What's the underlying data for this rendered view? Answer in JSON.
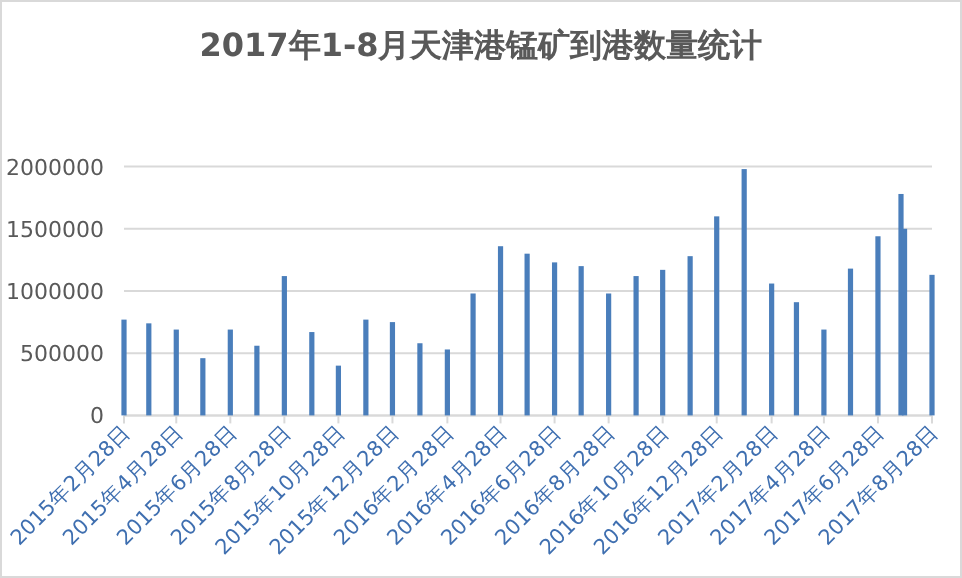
{
  "chart_data": {
    "type": "bar",
    "title": "2017年1-8月天津港锰矿到港数量统计",
    "x": [
      "2015-02-28",
      "2015-03-28",
      "2015-04-28",
      "2015-05-28",
      "2015-06-28",
      "2015-07-28",
      "2015-08-28",
      "2015-09-28",
      "2015-10-28",
      "2015-11-28",
      "2015-12-28",
      "2016-01-28",
      "2016-02-28",
      "2016-03-28",
      "2016-04-28",
      "2016-05-28",
      "2016-06-28",
      "2016-07-28",
      "2016-08-28",
      "2016-09-28",
      "2016-10-28",
      "2016-11-28",
      "2016-12-28",
      "2017-01-28",
      "2017-02-28",
      "2017-03-28",
      "2017-04-28",
      "2017-05-28",
      "2017-06-28",
      "2017-07-24",
      "2017-07-28",
      "2017-08-28"
    ],
    "values": [
      770000,
      740000,
      690000,
      460000,
      690000,
      560000,
      1120000,
      670000,
      400000,
      770000,
      750000,
      580000,
      530000,
      980000,
      1360000,
      1300000,
      1230000,
      1200000,
      980000,
      1120000,
      1170000,
      1280000,
      1600000,
      1980000,
      1060000,
      910000,
      690000,
      1180000,
      1440000,
      1780000,
      1500000,
      1130000
    ],
    "color": "#4a7ebb",
    "xlim": [
      "2015-02-28",
      "2017-08-28"
    ],
    "xticks": [
      {
        "value": "2015-02-28",
        "label": "2015年2月28日"
      },
      {
        "value": "2015-04-28",
        "label": "2015年4月28日"
      },
      {
        "value": "2015-06-28",
        "label": "2015年6月28日"
      },
      {
        "value": "2015-08-28",
        "label": "2015年8月28日"
      },
      {
        "value": "2015-10-28",
        "label": "2015年10月28日"
      },
      {
        "value": "2015-12-28",
        "label": "2015年12月28日"
      },
      {
        "value": "2016-02-28",
        "label": "2016年2月28日"
      },
      {
        "value": "2016-04-28",
        "label": "2016年4月28日"
      },
      {
        "value": "2016-06-28",
        "label": "2016年6月28日"
      },
      {
        "value": "2016-08-28",
        "label": "2016年8月28日"
      },
      {
        "value": "2016-10-28",
        "label": "2016年10月28日"
      },
      {
        "value": "2016-12-28",
        "label": "2016年12月28日"
      },
      {
        "value": "2017-02-28",
        "label": "2017年2月28日"
      },
      {
        "value": "2017-04-28",
        "label": "2017年4月28日"
      },
      {
        "value": "2017-06-28",
        "label": "2017年6月28日"
      },
      {
        "value": "2017-08-28",
        "label": "2017年8月28日"
      }
    ],
    "ylim": [
      0,
      2000000
    ],
    "yticks": [
      0,
      500000,
      1000000,
      1500000,
      2000000
    ],
    "grid": "y"
  }
}
